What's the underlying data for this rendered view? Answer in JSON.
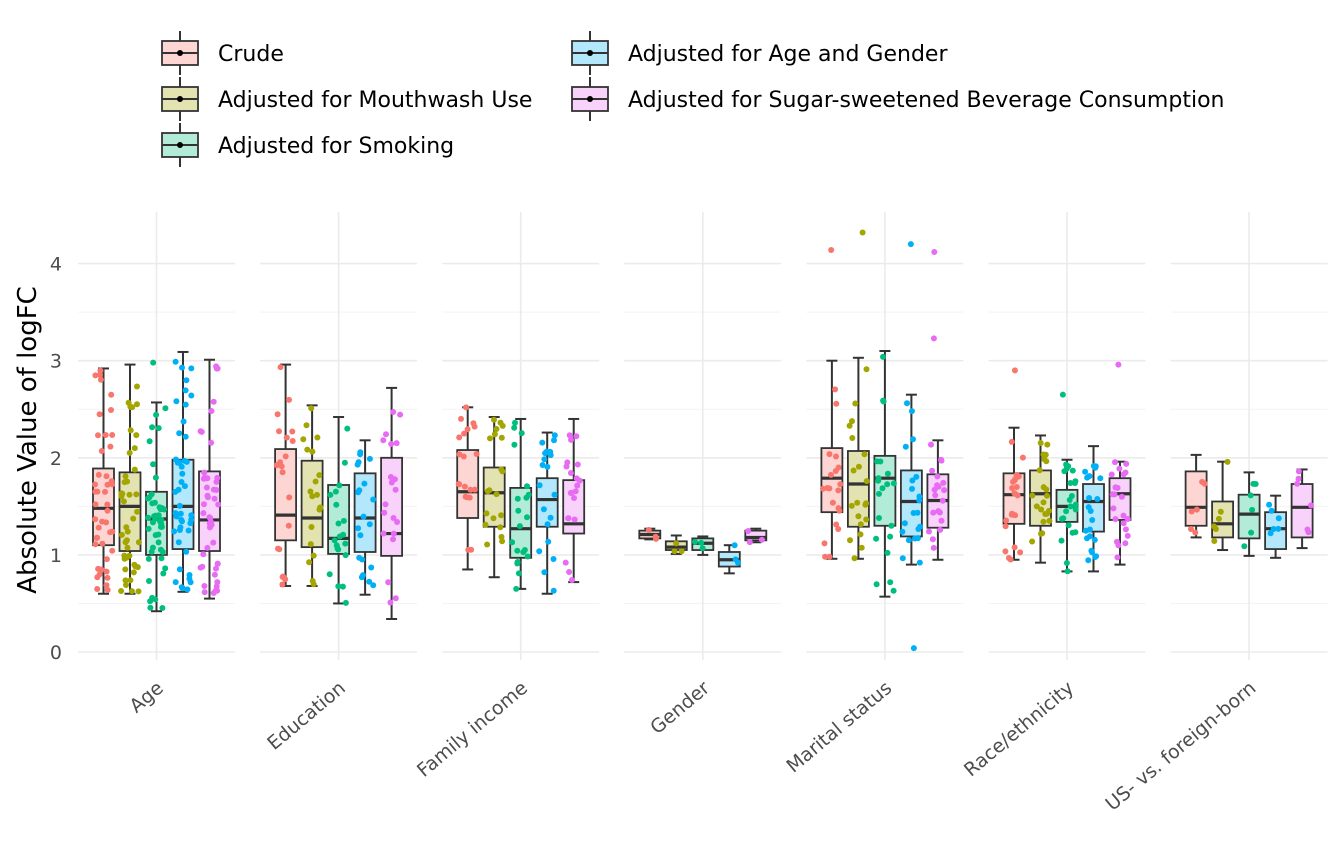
{
  "chart_data": {
    "type": "boxplot",
    "title": "",
    "xlabel": "",
    "ylabel": "Absolute Value of logFC",
    "ylim": [
      0,
      4.5
    ],
    "yticks": [
      0,
      1,
      2,
      3,
      4
    ],
    "grid": true,
    "legend_position": "top",
    "categories": [
      "Age",
      "Education",
      "Family income",
      "Gender",
      "Marital status",
      "Race/ethnicity",
      "US- vs. foreign-born"
    ],
    "series": [
      {
        "name": "Crude",
        "color": "#F8766D",
        "fill": "#FDD6D3"
      },
      {
        "name": "Adjusted for Mouthwash Use",
        "color": "#A3A500",
        "fill": "#E3E3B2"
      },
      {
        "name": "Adjusted for Smoking",
        "color": "#00BF7D",
        "fill": "#B2ECD8"
      },
      {
        "name": "Adjusted for Age and Gender",
        "color": "#00B0F6",
        "fill": "#B2E7FC"
      },
      {
        "name": "Adjusted for Sugar-sweetened Beverage Consumption",
        "color": "#E76BF3",
        "fill": "#F8D2FB"
      }
    ],
    "boxes": {
      "Age": [
        {
          "min": 0.6,
          "q1": 1.1,
          "median": 1.48,
          "q3": 1.89,
          "max": 2.92,
          "outliers": []
        },
        {
          "min": 0.6,
          "q1": 1.04,
          "median": 1.5,
          "q3": 1.85,
          "max": 2.96,
          "outliers": []
        },
        {
          "min": 0.42,
          "q1": 1.0,
          "median": 1.37,
          "q3": 1.65,
          "max": 2.57,
          "outliers": [
            2.98
          ]
        },
        {
          "min": 0.62,
          "q1": 1.06,
          "median": 1.5,
          "q3": 1.98,
          "max": 3.09,
          "outliers": []
        },
        {
          "min": 0.55,
          "q1": 1.04,
          "median": 1.36,
          "q3": 1.86,
          "max": 3.01,
          "outliers": []
        }
      ],
      "Education": [
        {
          "min": 0.68,
          "q1": 1.15,
          "median": 1.41,
          "q3": 2.09,
          "max": 2.96,
          "outliers": []
        },
        {
          "min": 0.68,
          "q1": 1.08,
          "median": 1.38,
          "q3": 1.97,
          "max": 2.54,
          "outliers": []
        },
        {
          "min": 0.5,
          "q1": 1.01,
          "median": 1.17,
          "q3": 1.72,
          "max": 2.42,
          "outliers": []
        },
        {
          "min": 0.59,
          "q1": 1.03,
          "median": 1.38,
          "q3": 1.84,
          "max": 2.18,
          "outliers": []
        },
        {
          "min": 0.34,
          "q1": 0.99,
          "median": 1.22,
          "q3": 2.0,
          "max": 2.72,
          "outliers": []
        }
      ],
      "Family income": [
        {
          "min": 0.85,
          "q1": 1.38,
          "median": 1.65,
          "q3": 2.08,
          "max": 2.52,
          "outliers": []
        },
        {
          "min": 0.77,
          "q1": 1.29,
          "median": 1.64,
          "q3": 1.9,
          "max": 2.42,
          "outliers": []
        },
        {
          "min": 0.65,
          "q1": 0.97,
          "median": 1.27,
          "q3": 1.69,
          "max": 2.4,
          "outliers": []
        },
        {
          "min": 0.6,
          "q1": 1.29,
          "median": 1.57,
          "q3": 1.79,
          "max": 2.26,
          "outliers": []
        },
        {
          "min": 0.72,
          "q1": 1.22,
          "median": 1.32,
          "q3": 1.77,
          "max": 2.4,
          "outliers": []
        }
      ],
      "Gender": [
        {
          "min": 1.16,
          "q1": 1.17,
          "median": 1.21,
          "q3": 1.25,
          "max": 1.27,
          "outliers": []
        },
        {
          "min": 1.01,
          "q1": 1.05,
          "median": 1.08,
          "q3": 1.14,
          "max": 1.2,
          "outliers": []
        },
        {
          "min": 1.0,
          "q1": 1.05,
          "median": 1.12,
          "q3": 1.17,
          "max": 1.19,
          "outliers": []
        },
        {
          "min": 0.81,
          "q1": 0.88,
          "median": 0.95,
          "q3": 1.03,
          "max": 1.1,
          "outliers": []
        },
        {
          "min": 1.13,
          "q1": 1.15,
          "median": 1.18,
          "q3": 1.25,
          "max": 1.27,
          "outliers": []
        }
      ],
      "Marital status": [
        {
          "min": 0.96,
          "q1": 1.44,
          "median": 1.79,
          "q3": 2.1,
          "max": 3.0,
          "outliers": [
            4.14
          ]
        },
        {
          "min": 0.96,
          "q1": 1.29,
          "median": 1.73,
          "q3": 2.07,
          "max": 3.03,
          "outliers": [
            4.32
          ]
        },
        {
          "min": 0.57,
          "q1": 1.3,
          "median": 1.79,
          "q3": 2.02,
          "max": 3.1,
          "outliers": []
        },
        {
          "min": 0.9,
          "q1": 1.19,
          "median": 1.55,
          "q3": 1.87,
          "max": 2.65,
          "outliers": [
            4.2,
            0.04
          ]
        },
        {
          "min": 0.95,
          "q1": 1.28,
          "median": 1.56,
          "q3": 1.83,
          "max": 2.18,
          "outliers": [
            4.12,
            3.23
          ]
        }
      ],
      "Race/ethnicity": [
        {
          "min": 0.95,
          "q1": 1.32,
          "median": 1.62,
          "q3": 1.84,
          "max": 2.31,
          "outliers": [
            2.9
          ]
        },
        {
          "min": 0.92,
          "q1": 1.3,
          "median": 1.63,
          "q3": 1.87,
          "max": 2.23,
          "outliers": []
        },
        {
          "min": 0.83,
          "q1": 1.34,
          "median": 1.5,
          "q3": 1.67,
          "max": 1.98,
          "outliers": [
            2.65
          ]
        },
        {
          "min": 0.83,
          "q1": 1.24,
          "median": 1.55,
          "q3": 1.73,
          "max": 2.12,
          "outliers": []
        },
        {
          "min": 0.9,
          "q1": 1.36,
          "median": 1.63,
          "q3": 1.79,
          "max": 1.96,
          "outliers": [
            2.96
          ]
        }
      ],
      "US- vs. foreign-born": [
        {
          "min": 1.18,
          "q1": 1.3,
          "median": 1.49,
          "q3": 1.86,
          "max": 2.03,
          "outliers": []
        },
        {
          "min": 1.05,
          "q1": 1.18,
          "median": 1.32,
          "q3": 1.55,
          "max": 1.96,
          "outliers": []
        },
        {
          "min": 0.99,
          "q1": 1.17,
          "median": 1.42,
          "q3": 1.62,
          "max": 1.85,
          "outliers": []
        },
        {
          "min": 0.97,
          "q1": 1.06,
          "median": 1.27,
          "q3": 1.44,
          "max": 1.61,
          "outliers": []
        },
        {
          "min": 1.07,
          "q1": 1.18,
          "median": 1.49,
          "q3": 1.73,
          "max": 1.88,
          "outliers": []
        }
      ]
    },
    "point_counts": [
      45,
      20,
      20,
      3,
      20,
      22,
      6
    ]
  }
}
